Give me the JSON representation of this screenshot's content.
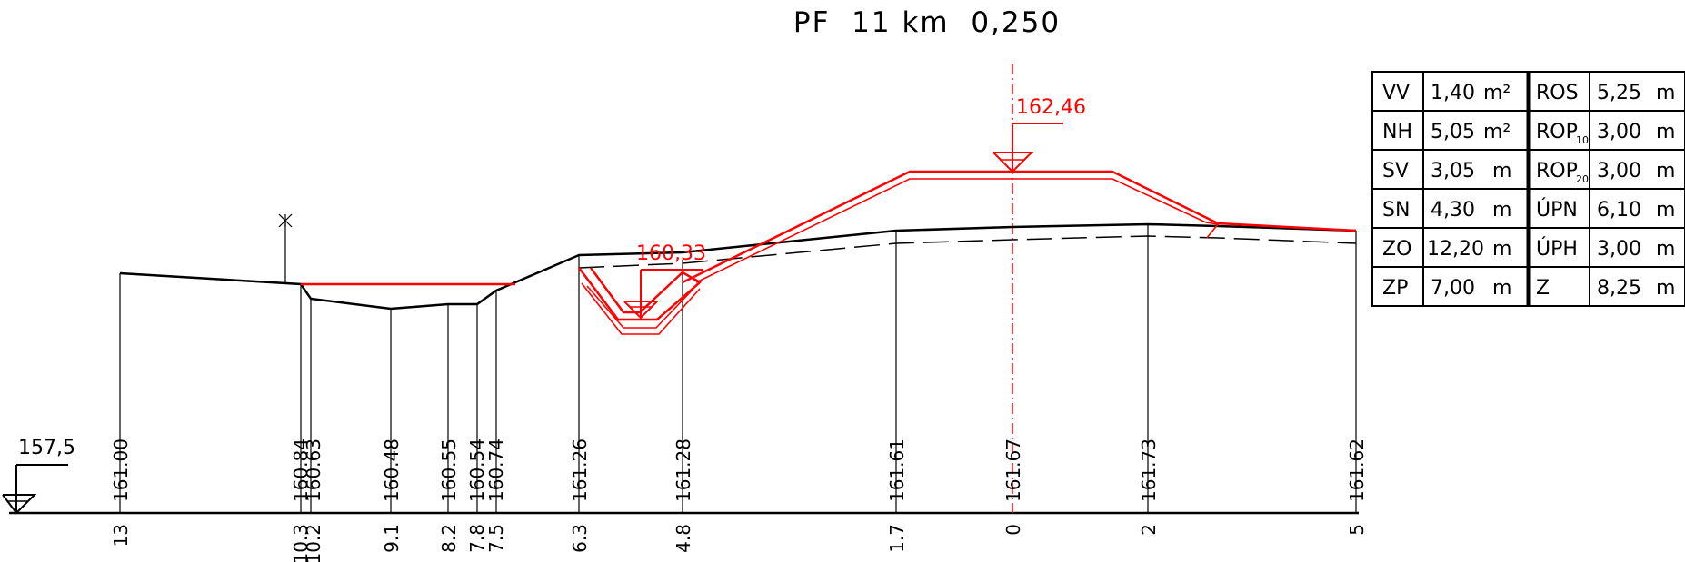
{
  "title": "PF  11 km  0,250",
  "reference_level": "157,5",
  "design_level": "162,46",
  "ditch_level": "160,33",
  "stations": [
    {
      "distance": "13",
      "elevation": "161.00"
    },
    {
      "distance": "10.3",
      "elevation": "160.84"
    },
    {
      "distance": "10.2",
      "elevation": "160.63"
    },
    {
      "distance": "9.1",
      "elevation": "160.48"
    },
    {
      "distance": "8.2",
      "elevation": "160.55"
    },
    {
      "distance": "7.8",
      "elevation": "160.54"
    },
    {
      "distance": "7.5",
      "elevation": "160.74"
    },
    {
      "distance": "6.3",
      "elevation": "161.26"
    },
    {
      "distance": "4.8",
      "elevation": "161.28"
    },
    {
      "distance": "1.7",
      "elevation": "161.61"
    },
    {
      "distance": "0",
      "elevation": "161.67"
    },
    {
      "distance": "2",
      "elevation": "161.73"
    },
    {
      "distance": "5",
      "elevation": "161.62"
    }
  ],
  "table": {
    "left": [
      {
        "code": "VV",
        "value": "1,40",
        "unit": "m²"
      },
      {
        "code": "NH",
        "value": "5,05",
        "unit": "m²"
      },
      {
        "code": "SV",
        "value": "3,05",
        "unit": "m"
      },
      {
        "code": "SN",
        "value": "4,30",
        "unit": "m"
      },
      {
        "code": "ZO",
        "value": "12,20",
        "unit": "m"
      },
      {
        "code": "ZP",
        "value": "7,00",
        "unit": "m"
      }
    ],
    "right": [
      {
        "code": "ROS",
        "sub": "",
        "value": "5,25",
        "unit": "m"
      },
      {
        "code": "ROP",
        "sub": "10",
        "value": "3,00",
        "unit": "m"
      },
      {
        "code": "ROP",
        "sub": "20",
        "value": "3,00",
        "unit": "m"
      },
      {
        "code": "ÚPN",
        "sub": "",
        "value": "6,10",
        "unit": "m"
      },
      {
        "code": "ÚPH",
        "sub": "",
        "value": "3,00",
        "unit": "m"
      },
      {
        "code": "Z",
        "sub": "",
        "value": "8,25",
        "unit": "m"
      }
    ]
  },
  "colors": {
    "design": "#ff0000",
    "terrain": "#000000"
  }
}
